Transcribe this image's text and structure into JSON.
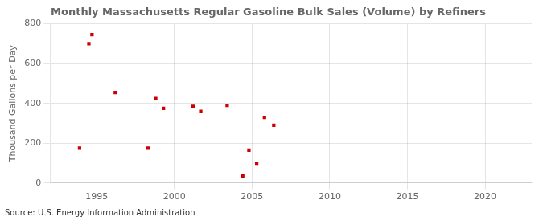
{
  "chart_data": {
    "type": "scatter",
    "title": "Monthly Massachusetts Regular Gasoline Bulk Sales (Volume) by Refiners",
    "ylabel": "Thousand Gallons per Day",
    "annotations": [
      "Source: U.S. Energy Information Administration"
    ],
    "x": [
      1993.9,
      1994.5,
      1994.7,
      1996.2,
      1998.3,
      1998.8,
      1999.3,
      2001.2,
      2001.7,
      2003.4,
      2004.4,
      2004.8,
      2005.3,
      2005.8,
      2006.4
    ],
    "values": [
      175,
      700,
      745,
      455,
      175,
      425,
      375,
      385,
      360,
      390,
      35,
      165,
      100,
      330,
      290
    ],
    "color": "#cc0000",
    "marker": "square",
    "xlim": [
      1992,
      2023
    ],
    "ylim": [
      0,
      800
    ],
    "xticks": [
      1995,
      2000,
      2005,
      2010,
      2015,
      2020
    ],
    "yticks": [
      0,
      200,
      400,
      600,
      800
    ],
    "grid": true
  }
}
